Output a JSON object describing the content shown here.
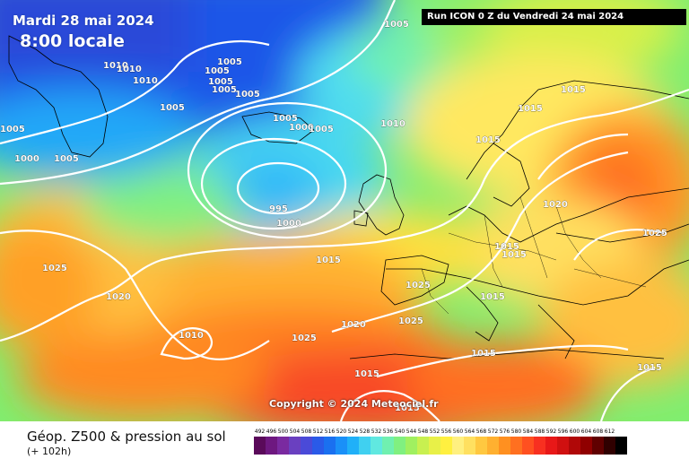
{
  "header": {
    "date": "Mardi 28 mai 2024",
    "time": "8:00 locale",
    "run": "Run ICON 0 Z du Vendredi 24 mai 2024"
  },
  "copyright": "Copyright © 2024 Meteociel.fr",
  "isobars": [
    {
      "id": "iso1",
      "label": "1005"
    },
    {
      "id": "iso2",
      "label": "1010"
    },
    {
      "id": "iso3",
      "label": "1010"
    },
    {
      "id": "iso4",
      "label": "1010"
    },
    {
      "id": "iso5",
      "label": "1005"
    },
    {
      "id": "iso6",
      "label": "1005"
    },
    {
      "id": "iso7",
      "label": "1005"
    },
    {
      "id": "iso8",
      "label": "1005"
    },
    {
      "id": "iso9",
      "label": "1005"
    },
    {
      "id": "iso10",
      "label": "1005"
    },
    {
      "id": "iso11",
      "label": "1005"
    },
    {
      "id": "iso12",
      "label": "1000"
    },
    {
      "id": "iso13",
      "label": "1005"
    },
    {
      "id": "iso14",
      "label": "1005"
    },
    {
      "id": "iso15",
      "label": "1000"
    },
    {
      "id": "iso16",
      "label": "1005"
    },
    {
      "id": "iso17",
      "label": "1010"
    },
    {
      "id": "iso18",
      "label": "995"
    },
    {
      "id": "iso19",
      "label": "1000"
    },
    {
      "id": "iso20",
      "label": "1015"
    },
    {
      "id": "iso21",
      "label": "1015"
    },
    {
      "id": "iso22",
      "label": "1015"
    },
    {
      "id": "iso23",
      "label": "1020"
    },
    {
      "id": "iso24",
      "label": "1025"
    },
    {
      "id": "iso25",
      "label": "1025"
    },
    {
      "id": "iso26",
      "label": "1015"
    },
    {
      "id": "iso27",
      "label": "1015"
    },
    {
      "id": "iso28",
      "label": "1015"
    },
    {
      "id": "iso29",
      "label": "1025"
    },
    {
      "id": "iso30",
      "label": "1015"
    },
    {
      "id": "iso31",
      "label": "1020"
    },
    {
      "id": "iso32",
      "label": "1025"
    },
    {
      "id": "iso33",
      "label": "1020"
    },
    {
      "id": "iso34",
      "label": "1010"
    },
    {
      "id": "iso35",
      "label": "1025"
    },
    {
      "id": "iso36",
      "label": "1015"
    },
    {
      "id": "iso37",
      "label": "1015"
    },
    {
      "id": "iso38",
      "label": "1015"
    },
    {
      "id": "iso39",
      "label": "1015"
    }
  ],
  "legend": {
    "title": "Géop. Z500 & pression au sol",
    "subtitle": "(+ 102h)",
    "ticks": [
      "492",
      "496",
      "500",
      "504",
      "508",
      "512",
      "516",
      "520",
      "524",
      "528",
      "532",
      "536",
      "540",
      "544",
      "548",
      "552",
      "556",
      "560",
      "564",
      "568",
      "572",
      "576",
      "580",
      "584",
      "588",
      "592",
      "596",
      "600",
      "604",
      "608",
      "612"
    ],
    "colors": [
      "#5a0a5a",
      "#6e1880",
      "#7a2aa0",
      "#6a40c0",
      "#4a4ad8",
      "#2a5ae8",
      "#1a70f0",
      "#1a90f8",
      "#20b0f8",
      "#40d0f0",
      "#60e8e0",
      "#70f0b0",
      "#80f080",
      "#a0f060",
      "#c8f050",
      "#e8f048",
      "#fff040",
      "#fff080",
      "#ffe060",
      "#ffc840",
      "#ffb030",
      "#ff9020",
      "#ff7020",
      "#ff5020",
      "#f83020",
      "#e81818",
      "#d01010",
      "#b00808",
      "#900000",
      "#600000",
      "#300000",
      "#000000"
    ]
  }
}
